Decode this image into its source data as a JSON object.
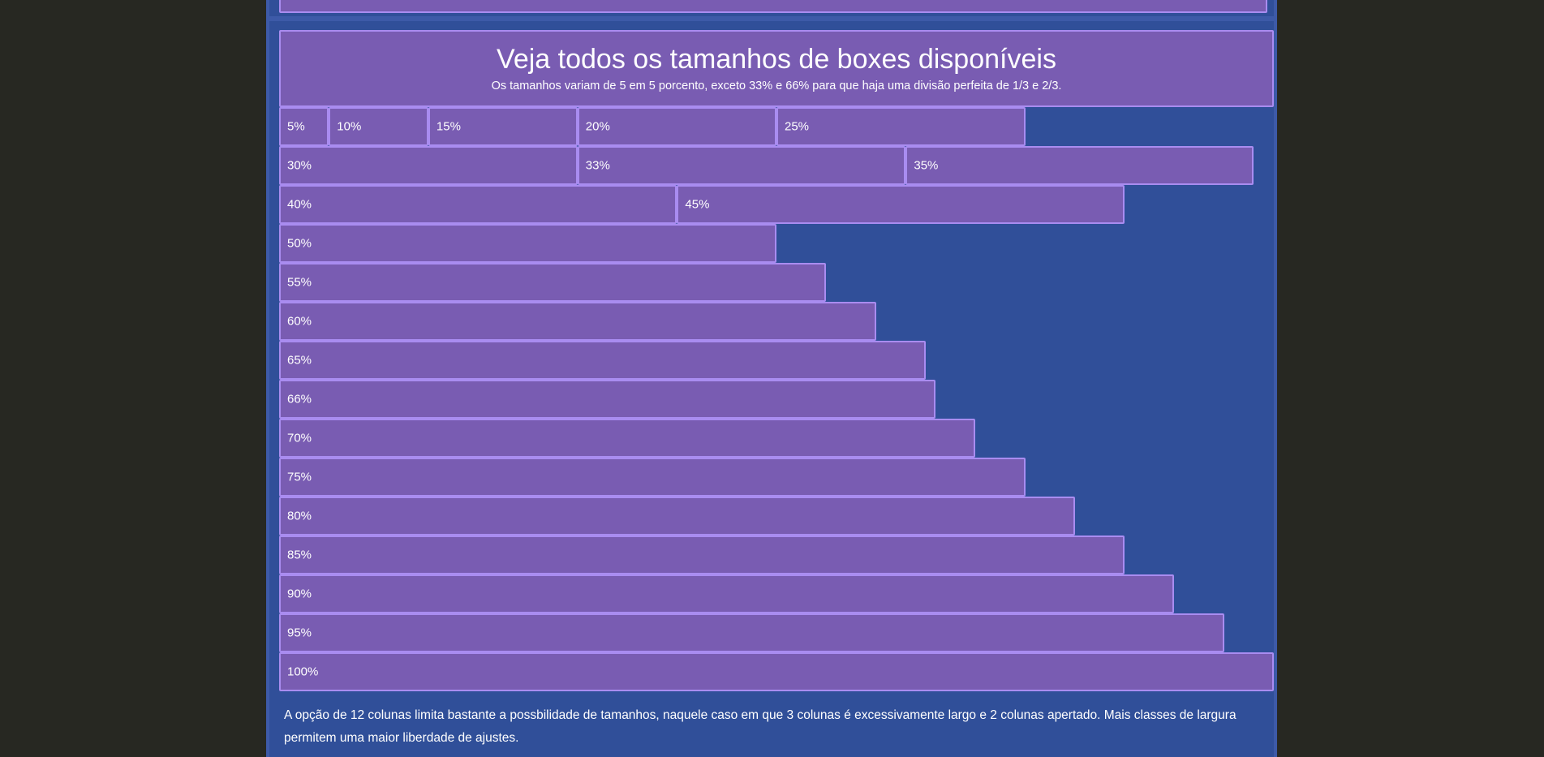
{
  "section": {
    "title": "Veja todos os tamanhos de boxes disponíveis",
    "subtitle": "Os tamanhos variam de 5 em 5 porcento, exceto 33% e 66% para que haja uma divisão perfeita de 1/3 e 2/3."
  },
  "boxes": [
    {
      "label": "5%",
      "width_percent": 5
    },
    {
      "label": "10%",
      "width_percent": 10
    },
    {
      "label": "15%",
      "width_percent": 15
    },
    {
      "label": "20%",
      "width_percent": 20
    },
    {
      "label": "25%",
      "width_percent": 25
    },
    {
      "label": "30%",
      "width_percent": 30
    },
    {
      "label": "33%",
      "width_percent": 33
    },
    {
      "label": "35%",
      "width_percent": 35
    },
    {
      "label": "40%",
      "width_percent": 40
    },
    {
      "label": "45%",
      "width_percent": 45
    },
    {
      "label": "50%",
      "width_percent": 50
    },
    {
      "label": "55%",
      "width_percent": 55
    },
    {
      "label": "60%",
      "width_percent": 60
    },
    {
      "label": "65%",
      "width_percent": 65
    },
    {
      "label": "66%",
      "width_percent": 66
    },
    {
      "label": "70%",
      "width_percent": 70
    },
    {
      "label": "75%",
      "width_percent": 75
    },
    {
      "label": "80%",
      "width_percent": 80
    },
    {
      "label": "85%",
      "width_percent": 85
    },
    {
      "label": "90%",
      "width_percent": 90
    },
    {
      "label": "95%",
      "width_percent": 95
    },
    {
      "label": "100%",
      "width_percent": 100
    }
  ],
  "footer": {
    "text": "A opção de 12 colunas limita bastante a possbilidade de tamanhos, naquele caso em que 3 colunas é excessivamente largo e 2 colunas apertado. Mais classes de largura permitem uma maior liberdade de ajustes."
  },
  "colors": {
    "page_background": "#272822",
    "container": "#304f99",
    "box_fill": "#795cb2",
    "box_border": "#a98cf0",
    "text": "#ffffff"
  }
}
